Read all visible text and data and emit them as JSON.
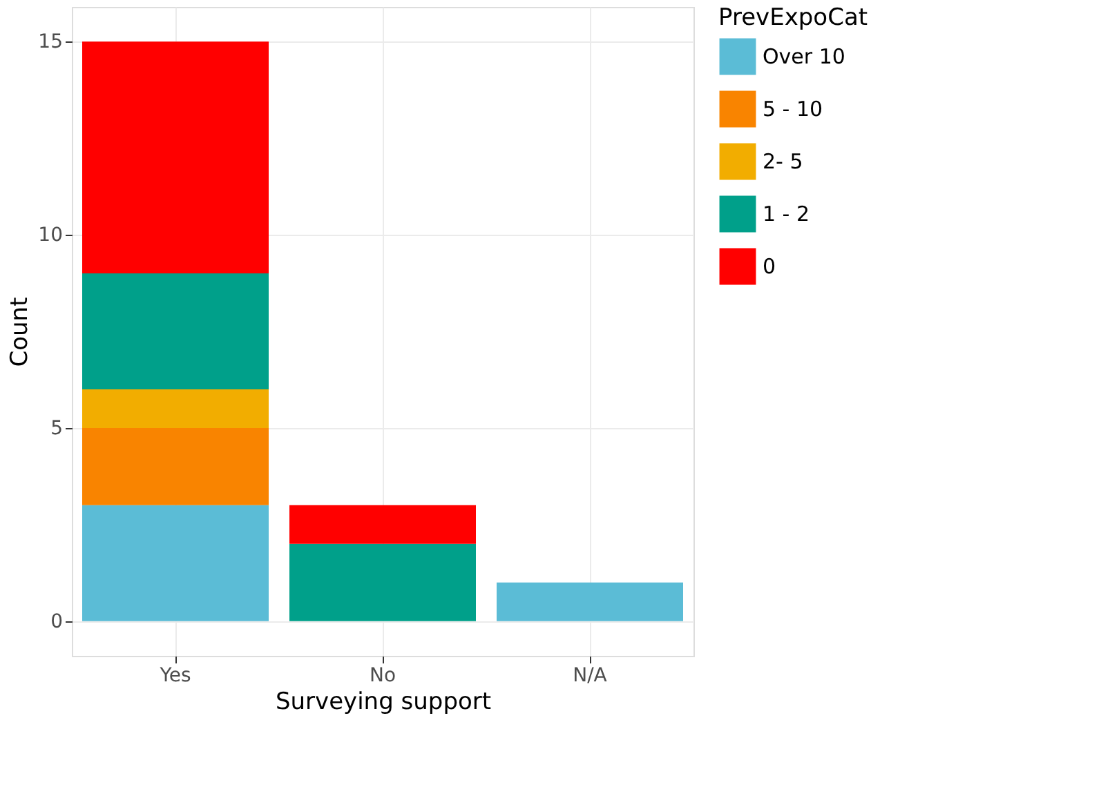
{
  "chart_data": {
    "type": "bar",
    "stacked": true,
    "xlabel": "Surveying support",
    "ylabel": "Count",
    "legend_title": "PrevExpoCat",
    "categories": [
      "Yes",
      "No",
      "N/A"
    ],
    "series": [
      {
        "name": "Over 10",
        "color": "#5bbcd6",
        "values": [
          3,
          null,
          1
        ]
      },
      {
        "name": "5 - 10",
        "color": "#f98400",
        "values": [
          2,
          null,
          null
        ]
      },
      {
        "name": "2- 5",
        "color": "#f2ad00",
        "values": [
          1,
          null,
          null
        ]
      },
      {
        "name": "1 - 2",
        "color": "#00a08a",
        "values": [
          3,
          2,
          null
        ]
      },
      {
        "name": "0",
        "color": "#ff0000",
        "values": [
          6,
          1,
          null
        ]
      }
    ],
    "ylim": [
      -0.9,
      15.9
    ],
    "yticks": [
      0,
      5,
      10,
      15
    ],
    "grid": true,
    "legend": "right"
  }
}
